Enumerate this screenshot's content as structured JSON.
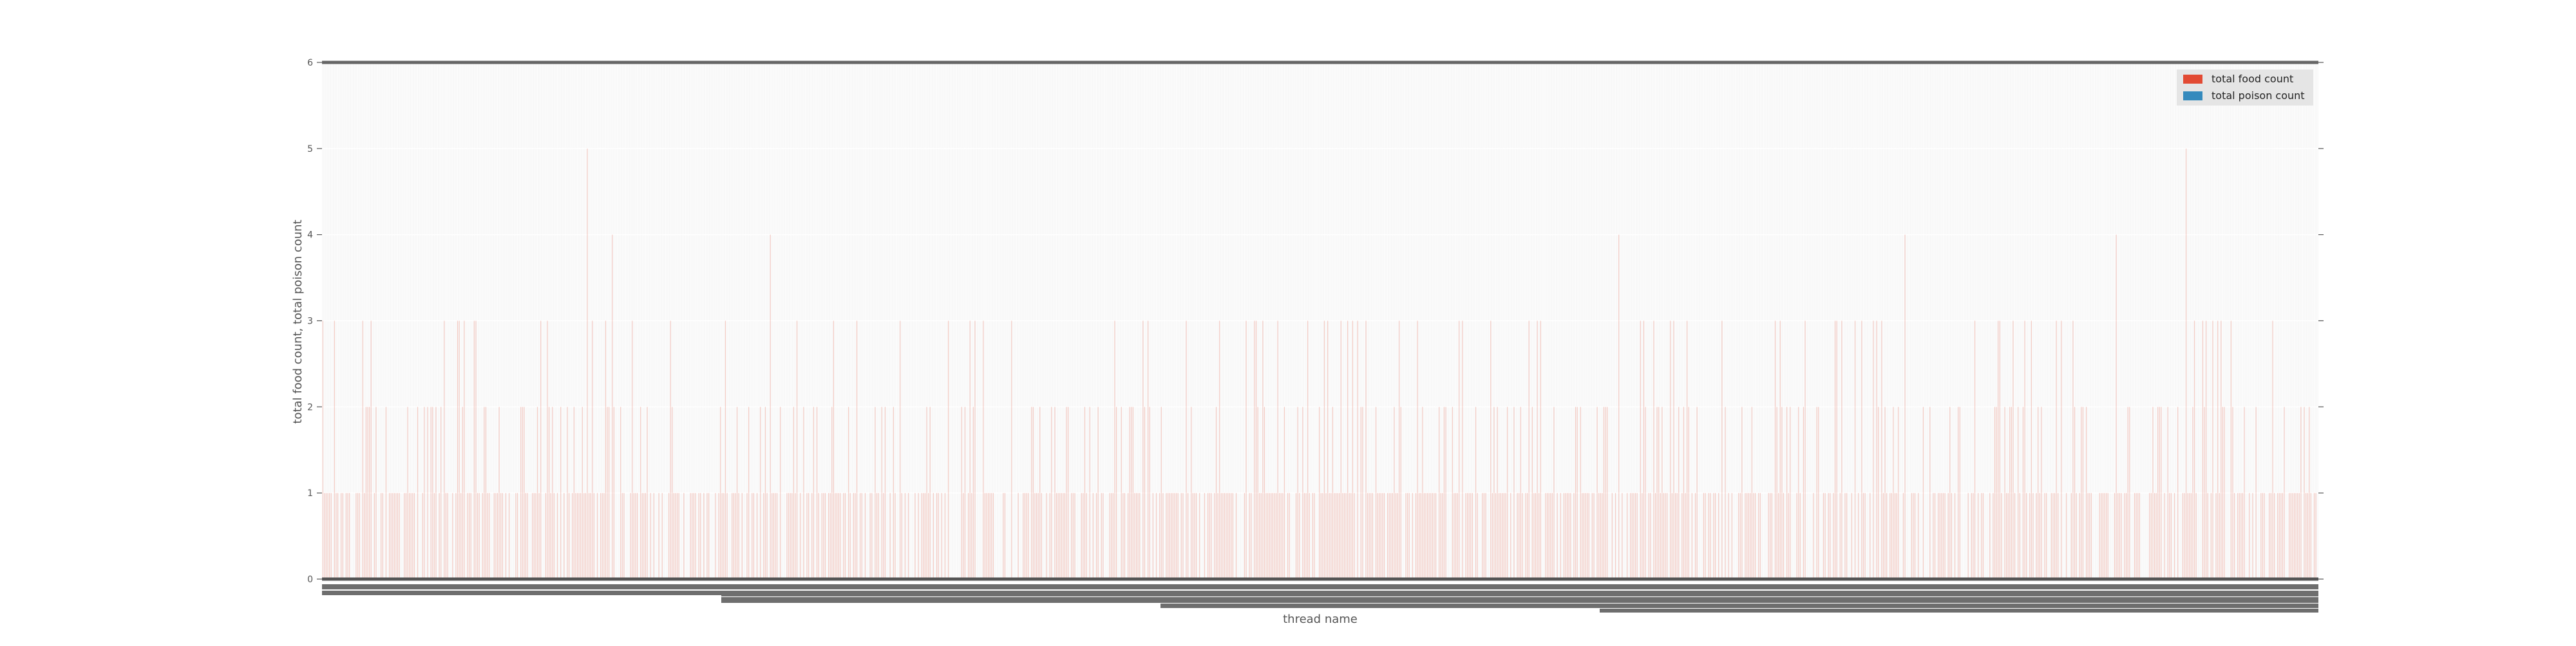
{
  "chart_data": {
    "type": "bar",
    "title": "",
    "xlabel": "thread name",
    "ylabel": "total food count, total poison count",
    "ylim": [
      0,
      6
    ],
    "yticks": [
      "0",
      "1",
      "2",
      "3",
      "4",
      "5",
      "6"
    ],
    "grid": true,
    "legend_position": "top-right",
    "category_count": 1200,
    "categories": [],
    "series": [
      {
        "name": "total food count",
        "color": "#E24A33",
        "values": []
      },
      {
        "name": "total poison count",
        "color": "#348ABD",
        "values": []
      }
    ],
    "notable_food_values": [
      {
        "position": 0.1325,
        "value": 5
      },
      {
        "position": 0.1447,
        "value": 4
      },
      {
        "position": 0.224,
        "value": 4
      },
      {
        "position": 0.6489,
        "value": 4
      },
      {
        "position": 0.7925,
        "value": 4
      },
      {
        "position": 0.8982,
        "value": 4
      },
      {
        "position": 0.933,
        "value": 5
      }
    ]
  }
}
